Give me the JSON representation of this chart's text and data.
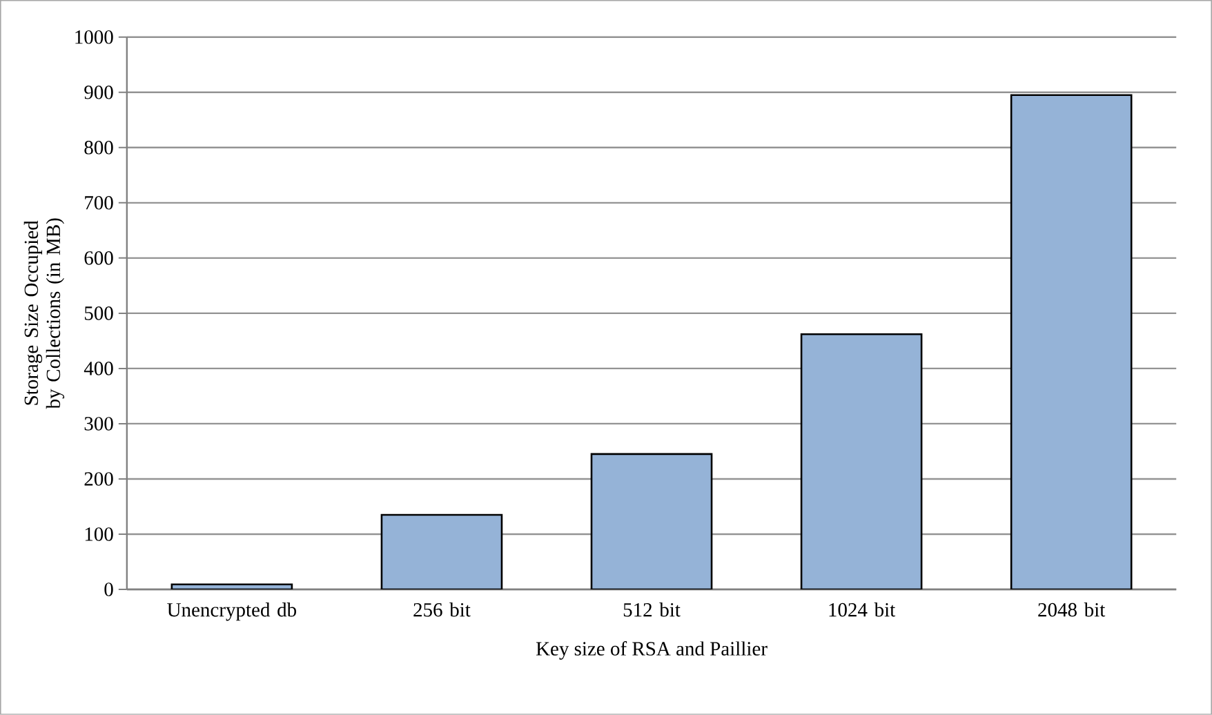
{
  "chart_data": {
    "type": "bar",
    "xlabel": "Key size of RSA and Paillier",
    "ylabel": "Storage Size Occupied by Collections (in MB)",
    "categories": [
      "Unencrypted db",
      "256 bit",
      "512 bit",
      "1024 bit",
      "2048 bit"
    ],
    "values": [
      9,
      135,
      245,
      462,
      895
    ],
    "color": "#95b3d7",
    "ylim": [
      0,
      1000
    ],
    "yticks": [
      0,
      100,
      200,
      300,
      400,
      500,
      600,
      700,
      800,
      900,
      1000
    ],
    "grid": "y"
  }
}
